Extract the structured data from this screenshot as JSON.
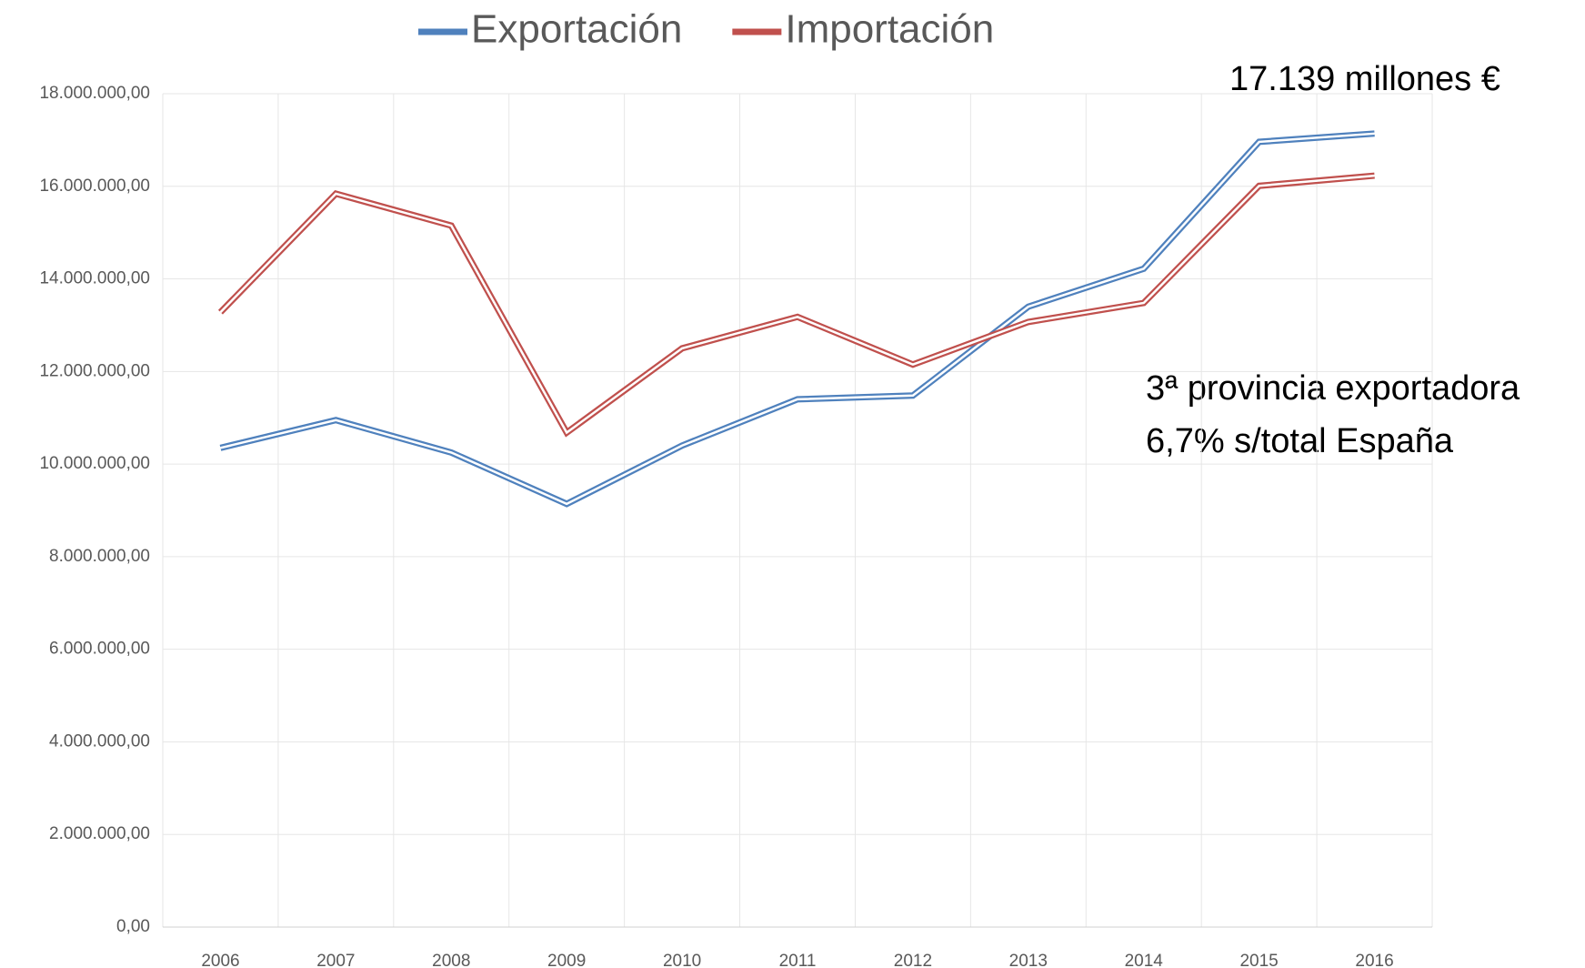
{
  "chart_data": {
    "type": "line",
    "categories": [
      "2006",
      "2007",
      "2008",
      "2009",
      "2010",
      "2011",
      "2012",
      "2013",
      "2014",
      "2015",
      "2016"
    ],
    "series": [
      {
        "name": "Exportación",
        "color": "#4f81bd",
        "values": [
          10350000,
          10950000,
          10250000,
          9140000,
          10400000,
          11400000,
          11480000,
          13400000,
          14220000,
          16960000,
          17139000
        ]
      },
      {
        "name": "Importación",
        "color": "#c0504d",
        "values": [
          13280000,
          15840000,
          15150000,
          10680000,
          12500000,
          13180000,
          12150000,
          13070000,
          13480000,
          16010000,
          16230000
        ]
      }
    ],
    "ylim": [
      0,
      18000000
    ],
    "yticks": [
      {
        "value": 0,
        "label": "0,00"
      },
      {
        "value": 2000000,
        "label": "2.000.000,00"
      },
      {
        "value": 4000000,
        "label": "4.000.000,00"
      },
      {
        "value": 6000000,
        "label": "6.000.000,00"
      },
      {
        "value": 8000000,
        "label": "8.000.000,00"
      },
      {
        "value": 10000000,
        "label": "10.000.000,00"
      },
      {
        "value": 12000000,
        "label": "12.000.000,00"
      },
      {
        "value": 14000000,
        "label": "14.000.000,00"
      },
      {
        "value": 16000000,
        "label": "16.000.000,00"
      },
      {
        "value": 18000000,
        "label": "18.000.000,00"
      }
    ],
    "grid": true,
    "legend": "top",
    "annotations": [
      "17.139 millones €",
      "3ª provincia exportadora",
      "6,7% s/total España"
    ]
  }
}
